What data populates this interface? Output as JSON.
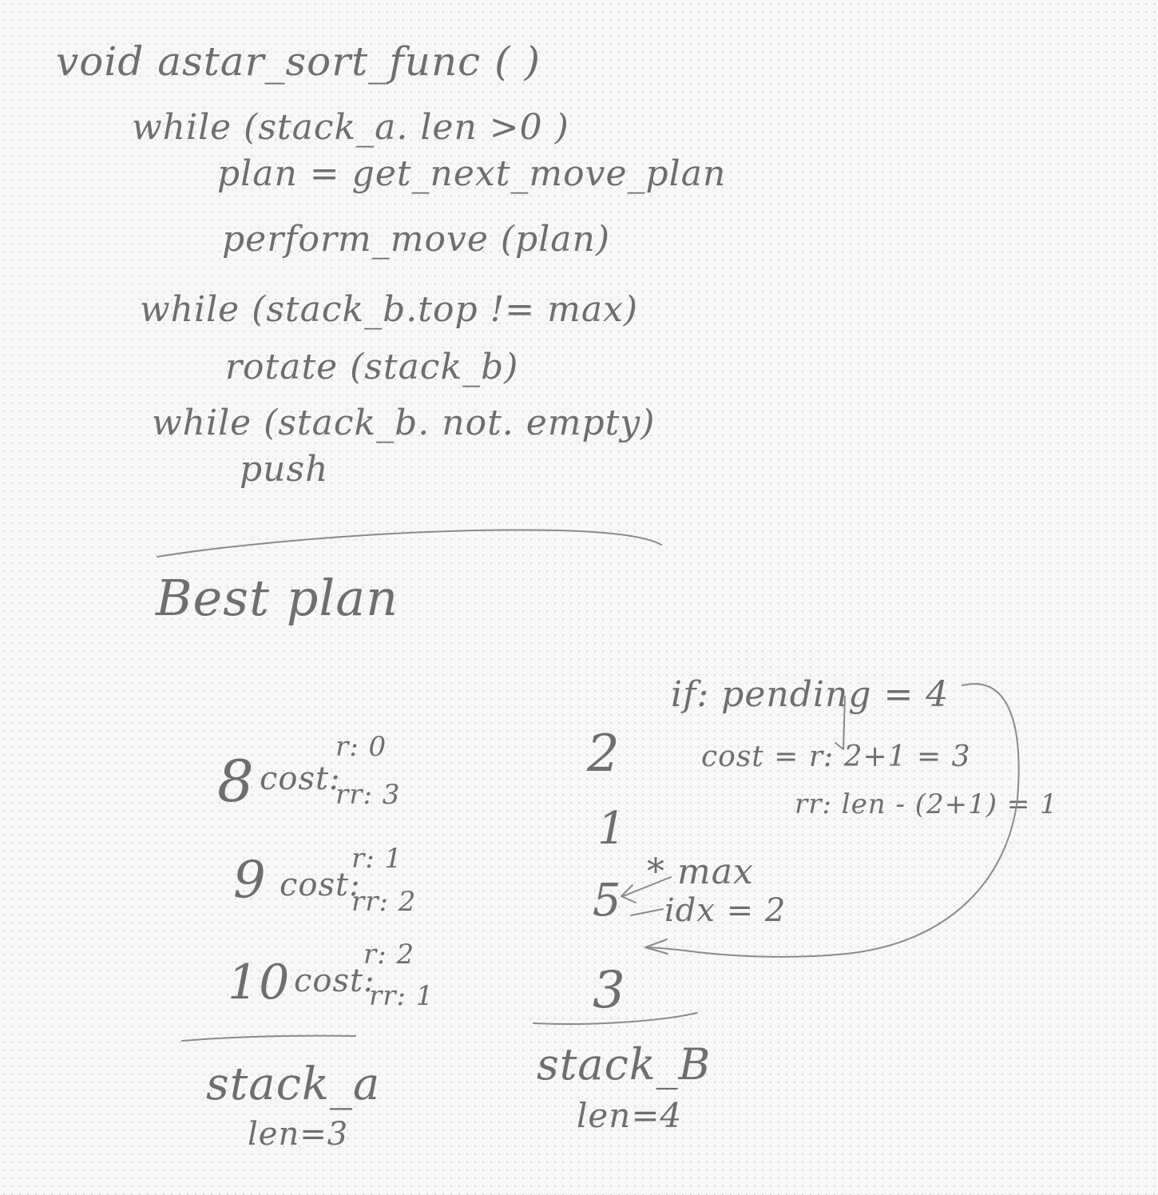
{
  "code": {
    "line1": "void astar_sort_func ( )",
    "line2": "while (stack_a. len >0 )",
    "line3": "plan = get_next_move_plan",
    "line4": "perform_move (plan)",
    "line5": "while (stack_b.top != max)",
    "line6": "rotate (stack_b)",
    "line7": "while (stack_b. not. empty)",
    "line8": "push"
  },
  "best_plan": {
    "heading": "Best plan"
  },
  "stack_a": {
    "items": [
      {
        "value": "8",
        "cost_label": "cost:",
        "r": "r: 0",
        "rr": "rr: 3"
      },
      {
        "value": "9",
        "cost_label": "cost:",
        "r": "r: 1",
        "rr": "rr: 2"
      },
      {
        "value": "10",
        "cost_label": "cost:",
        "r": "r: 2",
        "rr": "rr: 1"
      }
    ],
    "label": "stack_a",
    "len": "len=3"
  },
  "stack_b": {
    "items": [
      "2",
      "1",
      "5",
      "3"
    ],
    "max_note": "* max",
    "idx_note": "idx = 2",
    "label": "stack_B",
    "len": "len=4"
  },
  "note": {
    "if_line": "if: pending = 4",
    "cost_r": "cost = r: 2+1 = 3",
    "cost_rr": "rr: len - (2+1) = 1"
  },
  "colors": {
    "ink": "#6e6e6e",
    "paper": "#f7f7f7",
    "dots": "#d6d6d6"
  }
}
